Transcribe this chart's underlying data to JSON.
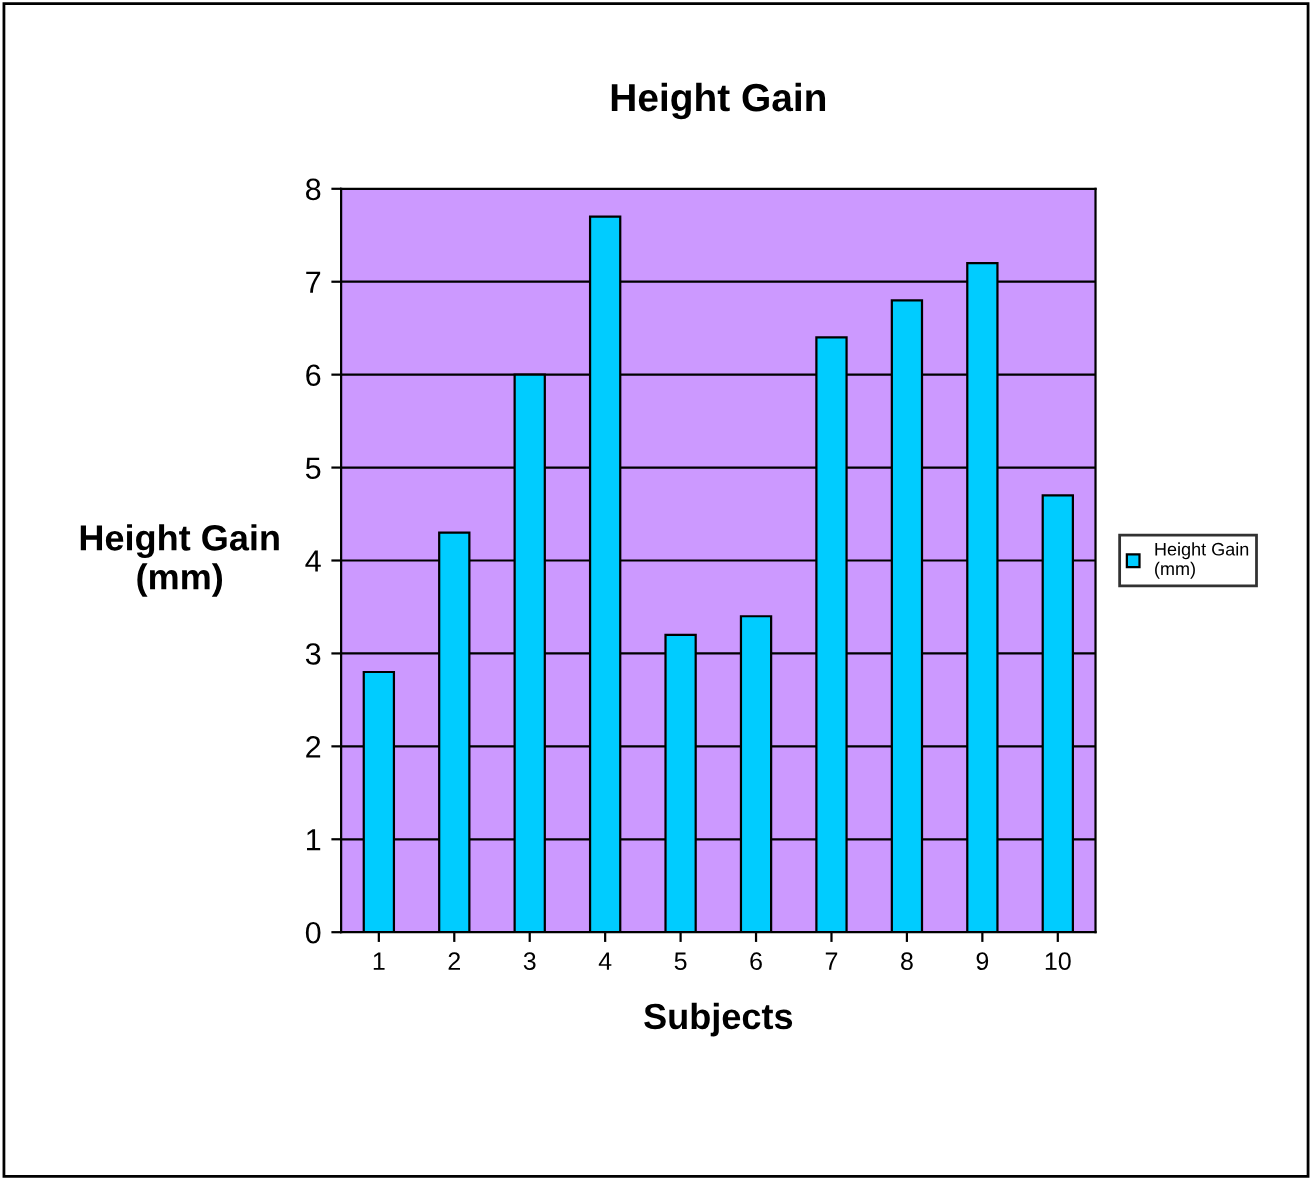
{
  "chart_data": {
    "type": "bar",
    "title": "Height Gain",
    "xlabel": "Subjects",
    "ylabel": "Height Gain\n(mm)",
    "categories": [
      "1",
      "2",
      "3",
      "4",
      "5",
      "6",
      "7",
      "8",
      "9",
      "10"
    ],
    "series": [
      {
        "name": "Height Gain\n(mm)",
        "color": "#00ccff",
        "values": [
          2.8,
          4.3,
          6.0,
          7.7,
          3.2,
          3.4,
          6.4,
          6.8,
          7.2,
          4.7
        ]
      }
    ],
    "ylim": [
      0,
      8
    ],
    "yticks": [
      0,
      1,
      2,
      3,
      4,
      5,
      6,
      7,
      8
    ],
    "grid": "y",
    "legend": "right"
  }
}
